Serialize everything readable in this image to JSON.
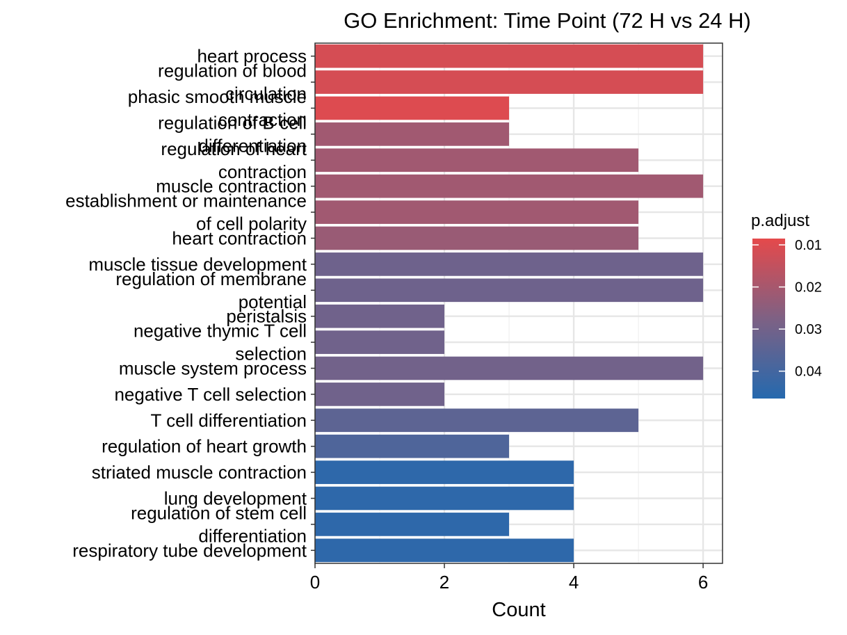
{
  "chart_data": {
    "type": "bar",
    "orientation": "horizontal",
    "title": "GO Enrichment: Time Point (72 H vs 24 H)",
    "xlabel": "Count",
    "ylabel": "",
    "xlim": [
      0,
      6.3
    ],
    "x_ticks": [
      0,
      2,
      4,
      6
    ],
    "grid": true,
    "categories": [
      "heart process",
      "regulation of blood\ncirculation",
      "phasic smooth muscle\ncontraction",
      "regulation of B cell\ndifferentiation",
      "regulation of heart\ncontraction",
      "muscle contraction",
      "establishment or maintenance\nof cell polarity",
      "heart contraction",
      "muscle tissue development",
      "regulation of membrane\npotential",
      "peristalsis",
      "negative thymic T cell\nselection",
      "muscle system process",
      "negative T cell selection",
      "T cell differentiation",
      "regulation of heart growth",
      "striated muscle contraction",
      "lung development",
      "regulation of stem cell\ndifferentiation",
      "respiratory tube development"
    ],
    "values": [
      6,
      6,
      3,
      3,
      5,
      6,
      5,
      5,
      6,
      6,
      2,
      2,
      6,
      2,
      5,
      3,
      4,
      4,
      3,
      4
    ],
    "p_adjust": [
      0.0115,
      0.0115,
      0.01,
      0.021,
      0.021,
      0.021,
      0.021,
      0.0225,
      0.031,
      0.031,
      0.0305,
      0.0305,
      0.03,
      0.0305,
      0.0345,
      0.0375,
      0.0445,
      0.0445,
      0.0445,
      0.0445
    ],
    "legend": {
      "title": "p.adjust",
      "position": "right",
      "ticks": [
        {
          "value": 0.01,
          "label": "0.01"
        },
        {
          "value": 0.02,
          "label": "0.02"
        },
        {
          "value": 0.03,
          "label": "0.03"
        },
        {
          "value": 0.04,
          "label": "0.04"
        }
      ],
      "range": [
        0.0085,
        0.0465
      ],
      "low_color": "#E5494B",
      "mid_color": "#7E6184",
      "high_color": "#2569AE"
    }
  }
}
